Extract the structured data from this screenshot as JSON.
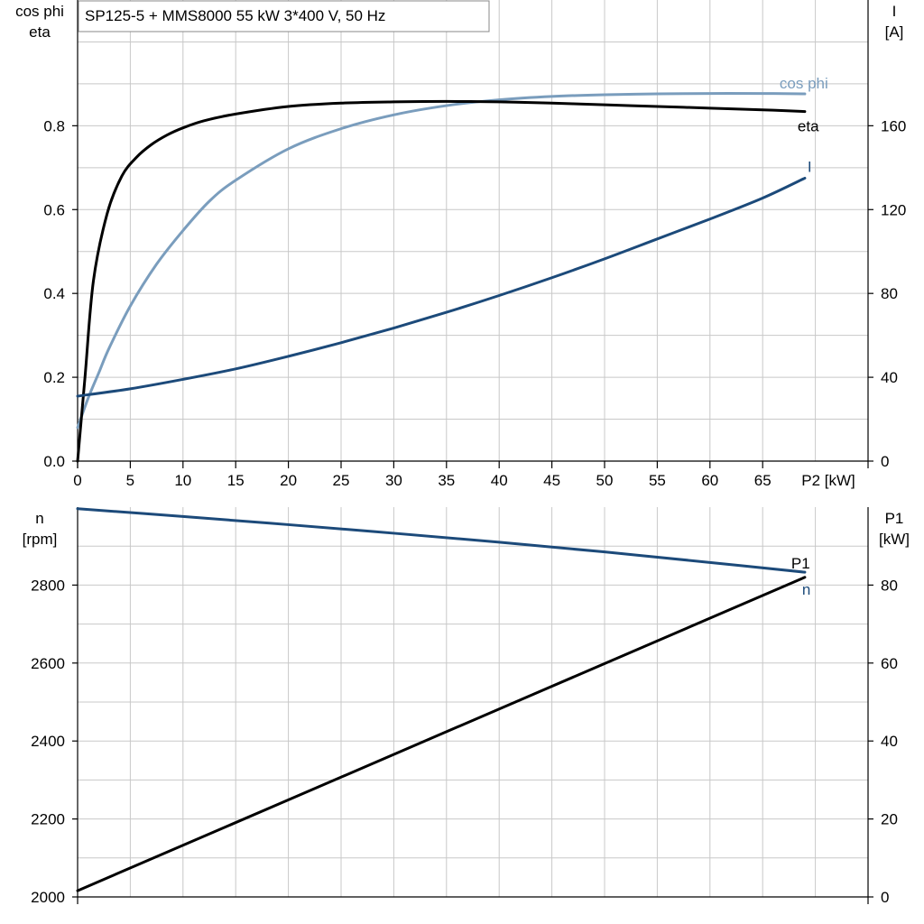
{
  "chart_data": [
    {
      "type": "line",
      "title": "SP125-5 + MMS8000   55 kW   3*400 V, 50 Hz",
      "xlabel": "P2 [kW]",
      "x_ticks": [
        "0",
        "5",
        "10",
        "15",
        "20",
        "25",
        "30",
        "35",
        "40",
        "45",
        "50",
        "55",
        "60",
        "65"
      ],
      "xlim": [
        0,
        75
      ],
      "y_left": {
        "label_lines": [
          "cos phi",
          "eta"
        ],
        "lim": [
          0,
          1.1
        ],
        "ticks": [
          "0.0",
          "0.2",
          "0.4",
          "0.6",
          "0.8"
        ],
        "tick_values": [
          0,
          0.2,
          0.4,
          0.6,
          0.8
        ]
      },
      "y_right": {
        "label_lines": [
          "I",
          "[A]"
        ],
        "lim": [
          0,
          220
        ],
        "ticks": [
          "0",
          "40",
          "80",
          "120",
          "160"
        ],
        "tick_values": [
          0,
          40,
          80,
          120,
          160
        ]
      },
      "grid": true,
      "series": [
        {
          "name": "cos phi",
          "axis": "left",
          "color": "#7a9dbd",
          "x": [
            0,
            1,
            2,
            3,
            5,
            7.5,
            10,
            12.5,
            15,
            20,
            25,
            30,
            35,
            40,
            45,
            50,
            55,
            60,
            65,
            69
          ],
          "y": [
            0.08,
            0.15,
            0.21,
            0.27,
            0.37,
            0.47,
            0.55,
            0.62,
            0.67,
            0.745,
            0.793,
            0.826,
            0.848,
            0.862,
            0.87,
            0.874,
            0.876,
            0.877,
            0.877,
            0.876
          ]
        },
        {
          "name": "eta",
          "axis": "left",
          "color": "#000000",
          "x": [
            0,
            0.7,
            1.5,
            2.8,
            4.2,
            5.6,
            7,
            8.5,
            10,
            12,
            15,
            20,
            25,
            30,
            35,
            40,
            45,
            50,
            55,
            60,
            65,
            69
          ],
          "y": [
            0.0,
            0.2,
            0.43,
            0.59,
            0.68,
            0.725,
            0.755,
            0.778,
            0.795,
            0.812,
            0.828,
            0.846,
            0.854,
            0.857,
            0.858,
            0.857,
            0.854,
            0.85,
            0.846,
            0.842,
            0.838,
            0.834
          ]
        },
        {
          "name": "I",
          "axis": "right",
          "color": "#1c4a7a",
          "x": [
            0,
            5,
            10,
            15,
            20,
            25,
            30,
            35,
            40,
            45,
            50,
            55,
            60,
            65,
            69
          ],
          "y": [
            31,
            34.5,
            39,
            44,
            50,
            56.5,
            63.5,
            71,
            79,
            87.5,
            96.5,
            106,
            115.5,
            125.5,
            135
          ]
        }
      ]
    },
    {
      "type": "line",
      "xlim": [
        0,
        75
      ],
      "y_left": {
        "label_lines": [
          "n",
          "[rpm]"
        ],
        "lim": [
          2000,
          3000
        ],
        "ticks": [
          "2000",
          "2200",
          "2400",
          "2600",
          "2800"
        ],
        "tick_values": [
          2000,
          2200,
          2400,
          2600,
          2800
        ]
      },
      "y_right": {
        "label_lines": [
          "P1",
          "[kW]"
        ],
        "lim": [
          0,
          100
        ],
        "ticks": [
          "0",
          "20",
          "40",
          "60",
          "80"
        ],
        "tick_values": [
          0,
          20,
          40,
          60,
          80
        ]
      },
      "grid": true,
      "series": [
        {
          "name": "n",
          "axis": "left",
          "color": "#1c4a7a",
          "x": [
            0,
            10,
            20,
            30,
            40,
            50,
            60,
            69
          ],
          "y": [
            2996,
            2976,
            2955,
            2933,
            2910,
            2885,
            2858,
            2833
          ]
        },
        {
          "name": "P1",
          "axis": "right",
          "color": "#000000",
          "x": [
            0,
            69
          ],
          "y": [
            1.6,
            82
          ]
        }
      ]
    }
  ]
}
